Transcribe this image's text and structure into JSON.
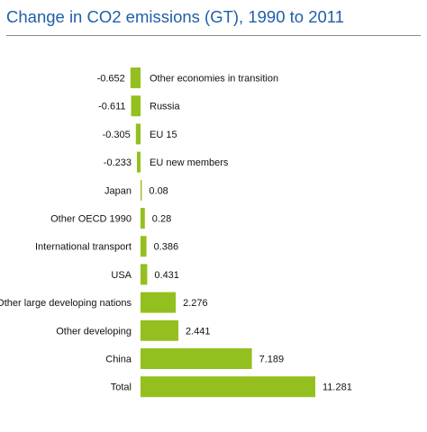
{
  "chart_data": {
    "type": "bar",
    "orientation": "horizontal",
    "title": "Change in CO2 emissions (GT), 1990 to 2011",
    "xlabel": "",
    "ylabel": "",
    "categories": [
      "Other economies in transition",
      "Russia",
      "EU 15",
      "EU new members",
      "Japan",
      "Other OECD 1990",
      "International transport",
      "USA",
      "Other large developing nations",
      "Other developing",
      "China",
      "Total"
    ],
    "values": [
      -0.652,
      -0.611,
      -0.305,
      -0.233,
      0.08,
      0.28,
      0.386,
      0.431,
      2.276,
      2.441,
      7.189,
      11.281
    ],
    "value_labels": [
      "-0.652",
      "-0.611",
      "-0.305",
      "-0.233",
      "0.08",
      "0.28",
      "0.386",
      "0.431",
      "2.276",
      "2.441",
      "7.189",
      "11.281"
    ],
    "bar_color": "#93c01f",
    "grid": false,
    "legend": "none"
  }
}
